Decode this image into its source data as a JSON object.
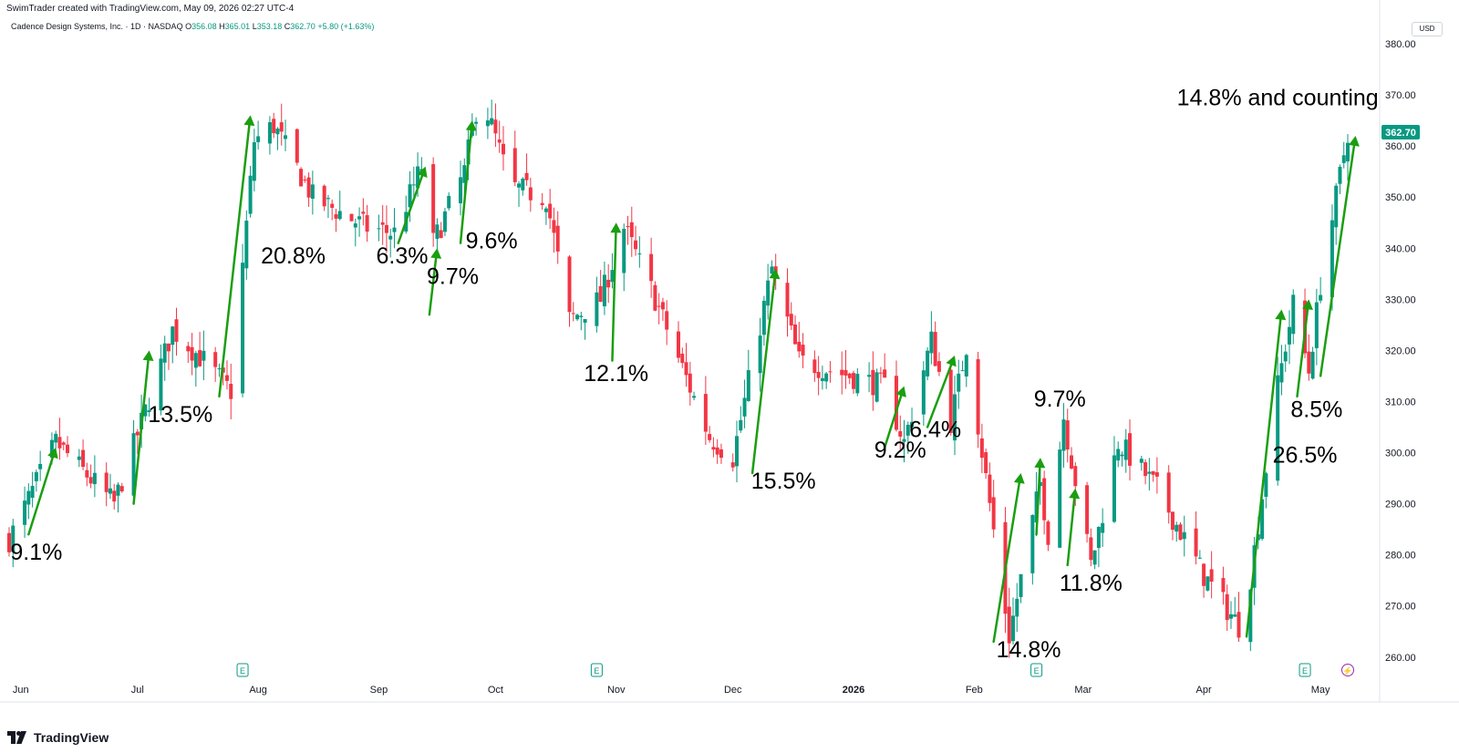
{
  "header": {
    "created_by": "SwimTrader created with TradingView.com, May 09, 2026 02:27 UTC-4"
  },
  "symbol": {
    "name": "Cadence Design Systems, Inc. · 1D · NASDAQ",
    "open_label": "O",
    "open": "356.08",
    "high_label": "H",
    "high": "365.01",
    "low_label": "L",
    "low": "353.18",
    "close_label": "C",
    "close": "362.70",
    "change": "+5.80 (+1.63%)"
  },
  "currency": "USD",
  "price_label": "362.70",
  "brand": "TradingView",
  "colors": {
    "up": "#089981",
    "down": "#f23645",
    "arrow": "#1a9e10",
    "earnings": "#089981",
    "dividend": "#9c27b0"
  },
  "chart_data": {
    "type": "candlestick",
    "y_ticks": [
      260,
      270,
      280,
      290,
      300,
      310,
      320,
      330,
      340,
      350,
      360,
      370,
      380
    ],
    "y_tick_labels": [
      "260.00",
      "270.00",
      "280.00",
      "290.00",
      "300.00",
      "310.00",
      "320.00",
      "330.00",
      "340.00",
      "350.00",
      "360.00",
      "370.00",
      "380.00"
    ],
    "ylim": [
      253,
      385
    ],
    "x_ticks": [
      "Jun",
      "Jul",
      "Aug",
      "Sep",
      "Oct",
      "Nov",
      "Dec",
      "2026",
      "Feb",
      "Mar",
      "Apr",
      "May"
    ],
    "x_tick_dates": [
      "2025-06-01",
      "2025-07-01",
      "2025-08-01",
      "2025-09-01",
      "2025-10-01",
      "2025-11-01",
      "2025-12-01",
      "2026-01-01",
      "2026-02-01",
      "2026-03-01",
      "2026-04-01",
      "2026-05-01"
    ],
    "date_range": [
      "2025-05-29",
      "2026-05-08"
    ],
    "last_price": 362.7,
    "anchors": [
      {
        "date": "2025-05-29",
        "price": 283
      },
      {
        "date": "2025-06-10",
        "price": 302
      },
      {
        "date": "2025-06-25",
        "price": 290
      },
      {
        "date": "2025-07-10",
        "price": 324
      },
      {
        "date": "2025-07-18",
        "price": 318
      },
      {
        "date": "2025-07-25",
        "price": 312
      },
      {
        "date": "2025-07-31",
        "price": 361
      },
      {
        "date": "2025-08-05",
        "price": 364
      },
      {
        "date": "2025-08-15",
        "price": 350
      },
      {
        "date": "2025-08-29",
        "price": 344
      },
      {
        "date": "2025-09-05",
        "price": 343
      },
      {
        "date": "2025-09-12",
        "price": 356
      },
      {
        "date": "2025-09-15",
        "price": 341
      },
      {
        "date": "2025-09-23",
        "price": 355
      },
      {
        "date": "2025-09-27",
        "price": 371
      },
      {
        "date": "2025-10-05",
        "price": 352
      },
      {
        "date": "2025-10-14",
        "price": 350
      },
      {
        "date": "2025-10-20",
        "price": 326
      },
      {
        "date": "2025-10-28",
        "price": 330
      },
      {
        "date": "2025-11-03",
        "price": 344
      },
      {
        "date": "2025-11-10",
        "price": 332
      },
      {
        "date": "2025-11-25",
        "price": 303
      },
      {
        "date": "2025-12-01",
        "price": 299
      },
      {
        "date": "2025-12-11",
        "price": 336
      },
      {
        "date": "2025-12-18",
        "price": 318
      },
      {
        "date": "2026-01-09",
        "price": 313
      },
      {
        "date": "2026-01-14",
        "price": 302
      },
      {
        "date": "2026-01-21",
        "price": 322
      },
      {
        "date": "2026-01-26",
        "price": 306
      },
      {
        "date": "2026-01-30",
        "price": 321
      },
      {
        "date": "2026-02-10",
        "price": 264
      },
      {
        "date": "2026-02-18",
        "price": 294
      },
      {
        "date": "2026-02-20",
        "price": 284
      },
      {
        "date": "2026-02-24",
        "price": 307
      },
      {
        "date": "2026-03-03",
        "price": 278
      },
      {
        "date": "2026-03-10",
        "price": 302
      },
      {
        "date": "2026-03-20",
        "price": 293
      },
      {
        "date": "2026-04-01",
        "price": 276
      },
      {
        "date": "2026-04-11",
        "price": 265
      },
      {
        "date": "2026-04-20",
        "price": 313
      },
      {
        "date": "2026-04-24",
        "price": 329
      },
      {
        "date": "2026-04-28",
        "price": 316
      },
      {
        "date": "2026-05-01",
        "price": 333
      },
      {
        "date": "2026-05-08",
        "price": 362.7
      }
    ],
    "annotations": [
      {
        "label": "9.1%",
        "from": {
          "date": "2025-06-03",
          "price": 284
        },
        "to": {
          "date": "2025-06-10",
          "price": 301
        },
        "label_at": {
          "date": "2025-06-05",
          "price": 279
        }
      },
      {
        "label": "13.5%",
        "from": {
          "date": "2025-06-30",
          "price": 290
        },
        "to": {
          "date": "2025-07-04",
          "price": 320
        },
        "label_at": {
          "date": "2025-07-12",
          "price": 306
        }
      },
      {
        "label": "20.8%",
        "from": {
          "date": "2025-07-22",
          "price": 311
        },
        "to": {
          "date": "2025-07-30",
          "price": 366
        },
        "label_at": {
          "date": "2025-08-10",
          "price": 337
        }
      },
      {
        "label": "6.3%",
        "from": {
          "date": "2025-09-06",
          "price": 341
        },
        "to": {
          "date": "2025-09-13",
          "price": 356
        },
        "label_at": {
          "date": "2025-09-07",
          "price": 337
        }
      },
      {
        "label": "9.7%",
        "from": {
          "date": "2025-09-14",
          "price": 327
        },
        "to": {
          "date": "2025-09-16",
          "price": 340
        },
        "label_at": {
          "date": "2025-09-20",
          "price": 333
        }
      },
      {
        "label": "9.6%",
        "from": {
          "date": "2025-09-22",
          "price": 341
        },
        "to": {
          "date": "2025-09-25",
          "price": 365
        },
        "label_at": {
          "date": "2025-09-30",
          "price": 340
        }
      },
      {
        "label": "12.1%",
        "from": {
          "date": "2025-10-31",
          "price": 318
        },
        "to": {
          "date": "2025-11-01",
          "price": 345
        },
        "label_at": {
          "date": "2025-11-01",
          "price": 314
        }
      },
      {
        "label": "15.5%",
        "from": {
          "date": "2025-12-06",
          "price": 296
        },
        "to": {
          "date": "2025-12-12",
          "price": 336
        },
        "label_at": {
          "date": "2025-12-14",
          "price": 293
        }
      },
      {
        "label": "9.2%",
        "from": {
          "date": "2026-01-09",
          "price": 301
        },
        "to": {
          "date": "2026-01-14",
          "price": 313
        },
        "label_at": {
          "date": "2026-01-13",
          "price": 299
        }
      },
      {
        "label": "6.4%",
        "from": {
          "date": "2026-01-20",
          "price": 305
        },
        "to": {
          "date": "2026-01-27",
          "price": 319
        },
        "label_at": {
          "date": "2026-01-22",
          "price": 303
        }
      },
      {
        "label": "14.8%",
        "from": {
          "date": "2026-02-06",
          "price": 263
        },
        "to": {
          "date": "2026-02-13",
          "price": 296
        },
        "label_at": {
          "date": "2026-02-15",
          "price": 260
        }
      },
      {
        "label": "9.7%",
        "from": {
          "date": "2026-02-17",
          "price": 284
        },
        "to": {
          "date": "2026-02-18",
          "price": 299
        },
        "label_at": {
          "date": "2026-02-23",
          "price": 309
        }
      },
      {
        "label": "11.8%",
        "from": {
          "date": "2026-02-25",
          "price": 278
        },
        "to": {
          "date": "2026-02-27",
          "price": 293
        },
        "label_at": {
          "date": "2026-03-03",
          "price": 273
        }
      },
      {
        "label": "26.5%",
        "from": {
          "date": "2026-04-12",
          "price": 264
        },
        "to": {
          "date": "2026-04-21",
          "price": 328
        },
        "label_at": {
          "date": "2026-04-27",
          "price": 298
        }
      },
      {
        "label": "8.5%",
        "from": {
          "date": "2026-04-25",
          "price": 311
        },
        "to": {
          "date": "2026-04-28",
          "price": 330
        },
        "label_at": {
          "date": "2026-04-30",
          "price": 307
        }
      },
      {
        "label": "14.8% and counting",
        "from": {
          "date": "2026-05-01",
          "price": 315
        },
        "to": {
          "date": "2026-05-10",
          "price": 362
        },
        "label_at": {
          "date": "2026-04-20",
          "price": 368
        }
      }
    ],
    "events": [
      {
        "type": "earnings",
        "date": "2025-07-28",
        "symbol": "E"
      },
      {
        "type": "earnings",
        "date": "2025-10-27",
        "symbol": "E"
      },
      {
        "type": "earnings",
        "date": "2026-02-17",
        "symbol": "E"
      },
      {
        "type": "earnings",
        "date": "2026-04-27",
        "symbol": "E"
      },
      {
        "type": "dividend",
        "date": "2026-05-08",
        "symbol": "⚡"
      }
    ]
  }
}
